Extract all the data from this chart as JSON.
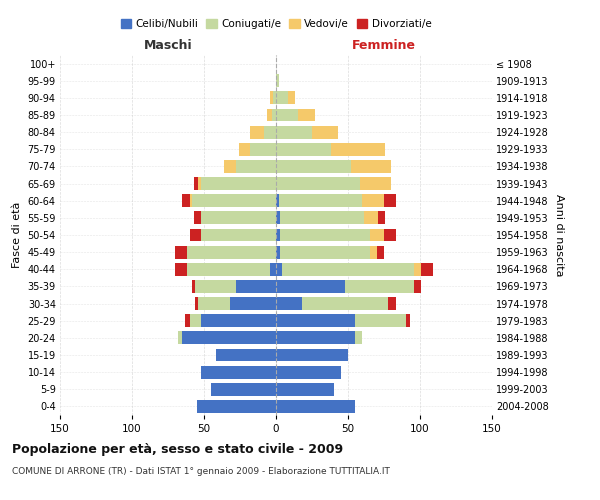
{
  "age_groups": [
    "0-4",
    "5-9",
    "10-14",
    "15-19",
    "20-24",
    "25-29",
    "30-34",
    "35-39",
    "40-44",
    "45-49",
    "50-54",
    "55-59",
    "60-64",
    "65-69",
    "70-74",
    "75-79",
    "80-84",
    "85-89",
    "90-94",
    "95-99",
    "100+"
  ],
  "birth_years": [
    "2004-2008",
    "1999-2003",
    "1994-1998",
    "1989-1993",
    "1984-1988",
    "1979-1983",
    "1974-1978",
    "1969-1973",
    "1964-1968",
    "1959-1963",
    "1954-1958",
    "1949-1953",
    "1944-1948",
    "1939-1943",
    "1934-1938",
    "1929-1933",
    "1924-1928",
    "1919-1923",
    "1914-1918",
    "1909-1913",
    "≤ 1908"
  ],
  "maschi": {
    "celibe": [
      55,
      45,
      52,
      42,
      65,
      52,
      32,
      28,
      4,
      0,
      0,
      0,
      0,
      0,
      0,
      0,
      0,
      0,
      0,
      0,
      0
    ],
    "coniugato": [
      0,
      0,
      0,
      0,
      3,
      8,
      22,
      28,
      58,
      62,
      52,
      52,
      58,
      52,
      28,
      18,
      8,
      3,
      2,
      0,
      0
    ],
    "vedovo": [
      0,
      0,
      0,
      0,
      0,
      0,
      0,
      0,
      0,
      0,
      0,
      0,
      2,
      2,
      8,
      8,
      10,
      3,
      2,
      0,
      0
    ],
    "divorziato": [
      0,
      0,
      0,
      0,
      0,
      3,
      2,
      2,
      8,
      8,
      8,
      5,
      5,
      3,
      0,
      0,
      0,
      0,
      0,
      0,
      0
    ]
  },
  "femmine": {
    "nubile": [
      55,
      40,
      45,
      50,
      55,
      55,
      18,
      48,
      4,
      3,
      3,
      3,
      2,
      0,
      0,
      0,
      0,
      0,
      0,
      0,
      0
    ],
    "coniugata": [
      0,
      0,
      0,
      0,
      5,
      35,
      60,
      48,
      92,
      62,
      62,
      58,
      58,
      58,
      52,
      38,
      25,
      15,
      8,
      2,
      0
    ],
    "vedova": [
      0,
      0,
      0,
      0,
      0,
      0,
      0,
      0,
      5,
      5,
      10,
      10,
      15,
      22,
      28,
      38,
      18,
      12,
      5,
      0,
      0
    ],
    "divorziata": [
      0,
      0,
      0,
      0,
      0,
      3,
      5,
      5,
      8,
      5,
      8,
      5,
      8,
      0,
      0,
      0,
      0,
      0,
      0,
      0,
      0
    ]
  },
  "colors": {
    "celibe": "#4472c4",
    "coniugato": "#c5d9a0",
    "vedovo": "#f5c96a",
    "divorziato": "#cc2222"
  },
  "xlim": 150,
  "title": "Popolazione per età, sesso e stato civile - 2009",
  "subtitle": "COMUNE DI ARRONE (TR) - Dati ISTAT 1° gennaio 2009 - Elaborazione TUTTITALIA.IT",
  "ylabel_left": "Fasce di età",
  "ylabel_right": "Anni di nascita",
  "xlabel_left": "Maschi",
  "xlabel_right": "Femmine",
  "legend_labels": [
    "Celibi/Nubili",
    "Coniugati/e",
    "Vedovi/e",
    "Divorziati/e"
  ],
  "bg_color": "#ffffff",
  "grid_color": "#cccccc",
  "label_color_maschi": "#333333",
  "label_color_femmine": "#cc2222"
}
